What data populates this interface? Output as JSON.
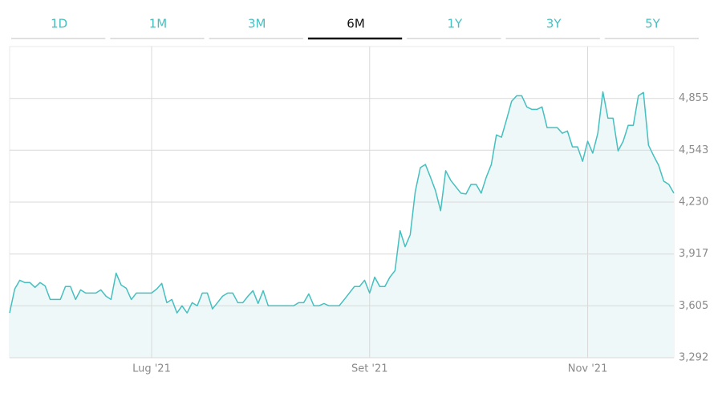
{
  "tabs": [
    "1D",
    "1M",
    "3M",
    "6M",
    "1Y",
    "3Y",
    "5Y"
  ],
  "active_tab": "6M",
  "chart_data": {
    "type": "area",
    "categories": [
      null,
      null,
      null,
      null,
      null,
      null,
      null,
      null,
      null,
      null,
      null,
      null,
      null,
      null,
      null,
      null,
      null,
      null,
      null,
      null,
      null,
      null,
      null,
      null,
      null,
      null,
      null,
      null,
      "Lug '21",
      null,
      null,
      null,
      null,
      null,
      null,
      null,
      null,
      null,
      null,
      null,
      null,
      null,
      null,
      null,
      null,
      null,
      null,
      null,
      null,
      null,
      null,
      null,
      null,
      null,
      null,
      null,
      null,
      null,
      null,
      null,
      null,
      null,
      null,
      null,
      null,
      null,
      null,
      null,
      null,
      null,
      null,
      "Set '21",
      null,
      null,
      null,
      null,
      null,
      null,
      null,
      null,
      null,
      null,
      null,
      null,
      null,
      null,
      null,
      null,
      null,
      null,
      null,
      null,
      null,
      null,
      null,
      null,
      null,
      null,
      null,
      null,
      null,
      null,
      null,
      null,
      null,
      null,
      null,
      null,
      null,
      null,
      null,
      null,
      null,
      null,
      "Nov '21",
      null,
      null,
      null,
      null,
      null,
      null,
      null,
      null,
      null,
      null,
      null,
      null,
      null,
      null,
      null,
      null,
      null
    ],
    "values": [
      3562,
      3706,
      3759,
      3745,
      3745,
      3716,
      3745,
      3725,
      3643,
      3643,
      3643,
      3721,
      3721,
      3643,
      3701,
      3682,
      3682,
      3682,
      3701,
      3663,
      3643,
      3802,
      3730,
      3711,
      3643,
      3682,
      3682,
      3682,
      3682,
      3706,
      3740,
      3624,
      3643,
      3562,
      3605,
      3562,
      3624,
      3605,
      3682,
      3682,
      3586,
      3624,
      3663,
      3682,
      3682,
      3624,
      3624,
      3663,
      3696,
      3619,
      3696,
      3605,
      3605,
      3605,
      3605,
      3605,
      3605,
      3624,
      3624,
      3677,
      3605,
      3605,
      3619,
      3605,
      3605,
      3605,
      3643,
      3682,
      3721,
      3721,
      3759,
      3682,
      3778,
      3721,
      3721,
      3778,
      3817,
      4058,
      3961,
      4033,
      4294,
      4438,
      4457,
      4380,
      4298,
      4178,
      4419,
      4361,
      4322,
      4284,
      4279,
      4337,
      4337,
      4284,
      4380,
      4457,
      4635,
      4621,
      4727,
      4838,
      4871,
      4871,
      4804,
      4789,
      4789,
      4804,
      4679,
      4679,
      4679,
      4645,
      4659,
      4563,
      4563,
      4476,
      4597,
      4525,
      4645,
      4895,
      4736,
      4736,
      4539,
      4597,
      4693,
      4693,
      4871,
      4891,
      4573,
      4510,
      4452,
      4356,
      4337,
      4284
    ],
    "color": "#45bfbf",
    "fill_color": "#eef8f8",
    "ylim": [
      3292,
      5168
    ],
    "yticks": [
      {
        "value": 3292,
        "label": "3,292"
      },
      {
        "value": 3605,
        "label": "3,605"
      },
      {
        "value": 3917,
        "label": "3,917"
      },
      {
        "value": 4230,
        "label": "4,230"
      },
      {
        "value": 4543,
        "label": "4,543"
      },
      {
        "value": 4855,
        "label": "4,855"
      }
    ],
    "grid": true
  }
}
